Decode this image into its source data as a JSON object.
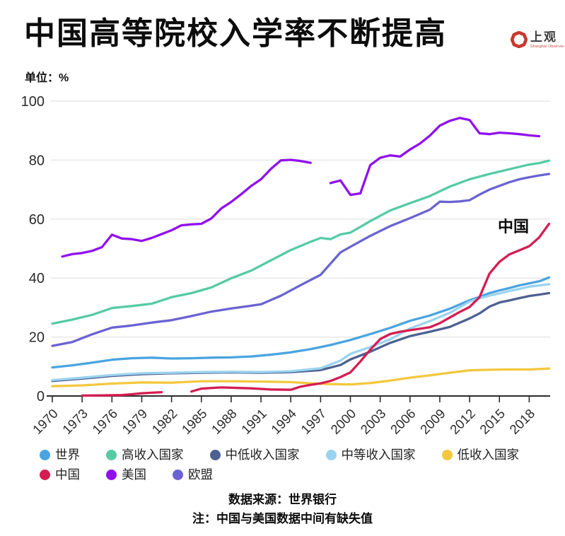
{
  "header": {
    "title": "中国高等院校入学率不断提高",
    "logo": {
      "name": "上观",
      "subtitle": "Shanghai Observer",
      "color": "#c9392e",
      "text_color": "#3c3c3c"
    }
  },
  "chart_data": {
    "type": "line",
    "title": "中国高等院校入学率不断提高",
    "unit_label": "单位：%",
    "xlabel": "",
    "ylabel": "",
    "ylim": [
      0,
      100
    ],
    "yticks": [
      0,
      20,
      40,
      60,
      80,
      100
    ],
    "xticks": [
      1970,
      1973,
      1976,
      1979,
      1982,
      1985,
      1988,
      1991,
      1994,
      1997,
      2000,
      2003,
      2006,
      2009,
      2012,
      2015,
      2018
    ],
    "xrange": [
      1970,
      2020
    ],
    "grid": "horizontal-only",
    "legend_position": "bottom",
    "axis_color": "#2a2a2a",
    "grid_color": "#e4e4e4",
    "tick_label_color": "#2b2b2b",
    "annotation": {
      "text": "中国",
      "series": "中国",
      "near_year": 2017,
      "near_value": 60
    },
    "series": [
      {
        "name": "世界",
        "color": "#4aa4e0",
        "segments": [
          [
            [
              1970,
              9.7
            ],
            [
              1972,
              10.4
            ],
            [
              1974,
              11.3
            ],
            [
              1976,
              12.3
            ],
            [
              1978,
              12.8
            ],
            [
              1980,
              13.0
            ],
            [
              1982,
              12.7
            ],
            [
              1984,
              12.8
            ],
            [
              1986,
              13.0
            ],
            [
              1988,
              13.1
            ],
            [
              1990,
              13.4
            ],
            [
              1992,
              14.0
            ],
            [
              1994,
              14.8
            ],
            [
              1996,
              15.9
            ],
            [
              1998,
              17.3
            ],
            [
              2000,
              19.0
            ],
            [
              2002,
              21.0
            ],
            [
              2004,
              23.1
            ],
            [
              2006,
              25.5
            ],
            [
              2008,
              27.3
            ],
            [
              2010,
              29.6
            ],
            [
              2012,
              32.5
            ],
            [
              2013,
              33.6
            ],
            [
              2014,
              34.9
            ],
            [
              2015,
              35.8
            ],
            [
              2016,
              36.6
            ],
            [
              2017,
              37.5
            ],
            [
              2018,
              38.2
            ],
            [
              2019,
              38.9
            ],
            [
              2020,
              40.2
            ]
          ]
        ]
      },
      {
        "name": "高收入国家",
        "color": "#55cba3",
        "segments": [
          [
            [
              1970,
              24.5
            ],
            [
              1972,
              25.9
            ],
            [
              1974,
              27.5
            ],
            [
              1976,
              29.8
            ],
            [
              1977,
              30.2
            ],
            [
              1978,
              30.5
            ],
            [
              1980,
              31.3
            ],
            [
              1982,
              33.5
            ],
            [
              1984,
              34.9
            ],
            [
              1986,
              36.8
            ],
            [
              1988,
              39.9
            ],
            [
              1990,
              42.5
            ],
            [
              1992,
              46.0
            ],
            [
              1994,
              49.5
            ],
            [
              1996,
              52.3
            ],
            [
              1997,
              53.6
            ],
            [
              1998,
              53.2
            ],
            [
              1999,
              54.8
            ],
            [
              2000,
              55.4
            ],
            [
              2002,
              59.3
            ],
            [
              2004,
              62.9
            ],
            [
              2006,
              65.4
            ],
            [
              2008,
              67.8
            ],
            [
              2010,
              71.0
            ],
            [
              2012,
              73.5
            ],
            [
              2014,
              75.3
            ],
            [
              2016,
              76.9
            ],
            [
              2018,
              78.5
            ],
            [
              2019,
              79.0
            ],
            [
              2020,
              79.8
            ]
          ]
        ]
      },
      {
        "name": "中低收入国家",
        "color": "#4d6190",
        "segments": [
          [
            [
              1970,
              5.1
            ],
            [
              1973,
              5.9
            ],
            [
              1976,
              6.8
            ],
            [
              1979,
              7.4
            ],
            [
              1982,
              7.7
            ],
            [
              1985,
              7.9
            ],
            [
              1988,
              8.0
            ],
            [
              1991,
              7.9
            ],
            [
              1994,
              8.1
            ],
            [
              1997,
              8.8
            ],
            [
              1999,
              10.5
            ],
            [
              2000,
              12.4
            ],
            [
              2002,
              15.0
            ],
            [
              2004,
              18.0
            ],
            [
              2006,
              20.3
            ],
            [
              2008,
              21.8
            ],
            [
              2010,
              23.4
            ],
            [
              2012,
              26.3
            ],
            [
              2013,
              28.0
            ],
            [
              2014,
              30.3
            ],
            [
              2015,
              31.7
            ],
            [
              2016,
              32.4
            ],
            [
              2017,
              33.2
            ],
            [
              2018,
              33.9
            ],
            [
              2019,
              34.4
            ],
            [
              2020,
              34.9
            ]
          ]
        ]
      },
      {
        "name": "中等收入国家",
        "color": "#9ad3ef",
        "segments": [
          [
            [
              1970,
              5.4
            ],
            [
              1973,
              6.2
            ],
            [
              1976,
              7.1
            ],
            [
              1979,
              7.7
            ],
            [
              1982,
              7.9
            ],
            [
              1985,
              8.1
            ],
            [
              1988,
              8.2
            ],
            [
              1991,
              8.1
            ],
            [
              1994,
              8.4
            ],
            [
              1997,
              9.4
            ],
            [
              1999,
              12.0
            ],
            [
              2000,
              14.3
            ],
            [
              2002,
              16.6
            ],
            [
              2004,
              19.2
            ],
            [
              2006,
              22.9
            ],
            [
              2008,
              25.4
            ],
            [
              2010,
              28.2
            ],
            [
              2012,
              32.0
            ],
            [
              2013,
              33.2
            ],
            [
              2014,
              34.0
            ],
            [
              2015,
              34.8
            ],
            [
              2016,
              35.6
            ],
            [
              2017,
              36.3
            ],
            [
              2018,
              37.1
            ],
            [
              2019,
              37.5
            ],
            [
              2020,
              37.9
            ]
          ]
        ]
      },
      {
        "name": "低收入国家",
        "color": "#f2c83e",
        "segments": [
          [
            [
              1970,
              3.3
            ],
            [
              1973,
              3.6
            ],
            [
              1976,
              4.2
            ],
            [
              1979,
              4.6
            ],
            [
              1982,
              4.5
            ],
            [
              1985,
              5.0
            ],
            [
              1988,
              5.0
            ],
            [
              1991,
              4.9
            ],
            [
              1994,
              4.7
            ],
            [
              1997,
              4.1
            ],
            [
              2000,
              3.9
            ],
            [
              2002,
              4.4
            ],
            [
              2004,
              5.2
            ],
            [
              2006,
              6.2
            ],
            [
              2008,
              7.0
            ],
            [
              2010,
              7.9
            ],
            [
              2012,
              8.7
            ],
            [
              2014,
              8.9
            ],
            [
              2016,
              9.0
            ],
            [
              2018,
              9.0
            ],
            [
              2020,
              9.3
            ]
          ]
        ]
      },
      {
        "name": "中国",
        "color": "#d41d52",
        "segments": [
          [
            [
              1973,
              0.15
            ],
            [
              1975,
              0.2
            ],
            [
              1977,
              0.3
            ],
            [
              1978,
              0.6
            ],
            [
              1979,
              0.9
            ],
            [
              1980,
              1.1
            ],
            [
              1981,
              1.3
            ]
          ],
          [
            [
              1984,
              1.5
            ],
            [
              1985,
              2.5
            ],
            [
              1986,
              2.7
            ],
            [
              1987,
              2.9
            ],
            [
              1988,
              2.8
            ],
            [
              1990,
              2.6
            ],
            [
              1992,
              2.2
            ],
            [
              1994,
              2.1
            ],
            [
              1995,
              3.2
            ],
            [
              1996,
              3.8
            ],
            [
              1997,
              4.3
            ],
            [
              1998,
              5.1
            ],
            [
              1999,
              6.4
            ],
            [
              2000,
              8.0
            ],
            [
              2001,
              11.7
            ],
            [
              2002,
              15.7
            ],
            [
              2003,
              19.3
            ],
            [
              2004,
              21.0
            ],
            [
              2005,
              21.8
            ],
            [
              2006,
              22.3
            ],
            [
              2007,
              22.8
            ],
            [
              2008,
              23.3
            ],
            [
              2009,
              24.7
            ],
            [
              2010,
              26.6
            ],
            [
              2011,
              28.5
            ],
            [
              2012,
              30.2
            ],
            [
              2013,
              33.5
            ],
            [
              2014,
              41.5
            ],
            [
              2015,
              45.5
            ],
            [
              2016,
              48.0
            ],
            [
              2017,
              49.4
            ],
            [
              2018,
              50.8
            ],
            [
              2019,
              53.8
            ],
            [
              2020,
              58.4
            ]
          ]
        ]
      },
      {
        "name": "美国",
        "color": "#9010ee",
        "segments": [
          [
            [
              1971,
              47.3
            ],
            [
              1972,
              48.1
            ],
            [
              1973,
              48.5
            ],
            [
              1974,
              49.2
            ],
            [
              1975,
              50.5
            ],
            [
              1976,
              54.7
            ],
            [
              1977,
              53.4
            ],
            [
              1978,
              53.2
            ],
            [
              1979,
              52.6
            ],
            [
              1980,
              53.6
            ],
            [
              1981,
              54.9
            ],
            [
              1982,
              56.2
            ],
            [
              1983,
              57.9
            ],
            [
              1984,
              58.2
            ],
            [
              1985,
              58.4
            ],
            [
              1986,
              60.2
            ],
            [
              1987,
              63.6
            ],
            [
              1988,
              65.8
            ],
            [
              1989,
              68.4
            ],
            [
              1990,
              71.2
            ],
            [
              1991,
              73.5
            ],
            [
              1992,
              77.0
            ],
            [
              1993,
              79.9
            ],
            [
              1994,
              80.1
            ],
            [
              1995,
              79.7
            ],
            [
              1996,
              79.1
            ]
          ],
          [
            [
              1998,
              72.2
            ],
            [
              1999,
              73.1
            ],
            [
              2000,
              68.2
            ],
            [
              2001,
              68.7
            ],
            [
              2002,
              78.3
            ],
            [
              2003,
              80.8
            ],
            [
              2004,
              81.6
            ],
            [
              2005,
              81.2
            ],
            [
              2006,
              83.6
            ],
            [
              2007,
              85.6
            ],
            [
              2008,
              88.3
            ],
            [
              2009,
              91.7
            ],
            [
              2010,
              93.3
            ],
            [
              2011,
              94.3
            ],
            [
              2012,
              93.6
            ],
            [
              2013,
              89.1
            ],
            [
              2014,
              88.8
            ],
            [
              2015,
              89.3
            ],
            [
              2016,
              89.1
            ],
            [
              2017,
              88.8
            ],
            [
              2018,
              88.4
            ],
            [
              2019,
              88.1
            ]
          ]
        ]
      },
      {
        "name": "欧盟",
        "color": "#6a63d2",
        "segments": [
          [
            [
              1970,
              17.0
            ],
            [
              1972,
              18.3
            ],
            [
              1974,
              20.9
            ],
            [
              1976,
              23.2
            ],
            [
              1978,
              23.9
            ],
            [
              1980,
              24.9
            ],
            [
              1982,
              25.7
            ],
            [
              1984,
              27.1
            ],
            [
              1986,
              28.6
            ],
            [
              1988,
              29.7
            ],
            [
              1990,
              30.6
            ],
            [
              1991,
              31.1
            ],
            [
              1993,
              34.0
            ],
            [
              1995,
              37.6
            ],
            [
              1997,
              41.1
            ],
            [
              1999,
              48.7
            ],
            [
              2000,
              50.6
            ],
            [
              2002,
              54.3
            ],
            [
              2004,
              57.6
            ],
            [
              2006,
              60.3
            ],
            [
              2008,
              63.2
            ],
            [
              2009,
              65.9
            ],
            [
              2010,
              65.8
            ],
            [
              2011,
              66.0
            ],
            [
              2012,
              66.4
            ],
            [
              2013,
              68.3
            ],
            [
              2014,
              70.0
            ],
            [
              2016,
              72.5
            ],
            [
              2017,
              73.5
            ],
            [
              2018,
              74.2
            ],
            [
              2019,
              74.8
            ],
            [
              2020,
              75.3
            ]
          ]
        ]
      }
    ],
    "legend_rows": [
      [
        0,
        1,
        2,
        3,
        4
      ],
      [
        5,
        6,
        7
      ]
    ]
  },
  "footer": {
    "source": "数据来源：世界银行",
    "note": "注：中国与美国数据中间有缺失值"
  }
}
